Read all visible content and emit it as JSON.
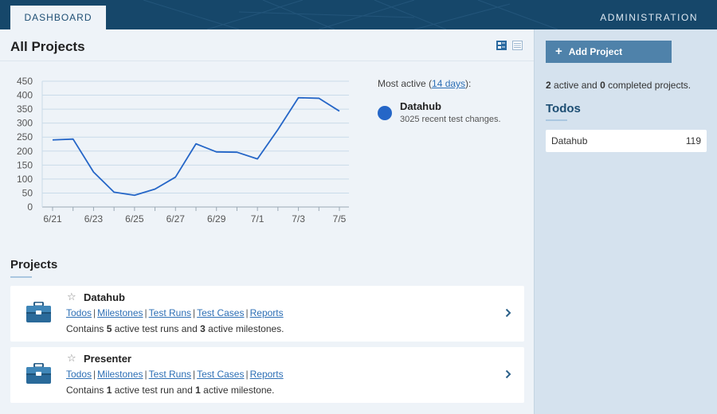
{
  "nav": {
    "dashboard": "DASHBOARD",
    "administration": "ADMINISTRATION"
  },
  "main": {
    "title": "All Projects"
  },
  "most_active": {
    "prefix": "Most active (",
    "link": "14 days",
    "suffix": "):",
    "project": "Datahub",
    "description": "3025 recent test changes.",
    "color": "#2566c7"
  },
  "chart_data": {
    "type": "line",
    "x": [
      "6/21",
      "6/22",
      "6/23",
      "6/24",
      "6/25",
      "6/26",
      "6/27",
      "6/28",
      "6/29",
      "6/30",
      "7/1",
      "7/2",
      "7/3",
      "7/4",
      "7/5"
    ],
    "x_tick_labels": [
      "6/21",
      "6/23",
      "6/25",
      "6/27",
      "6/29",
      "7/1",
      "7/3",
      "7/5"
    ],
    "series": [
      {
        "name": "Datahub",
        "values": [
          240,
          243,
          125,
          53,
          42,
          64,
          107,
          226,
          197,
          196,
          172,
          277,
          391,
          389,
          343
        ],
        "color": "#2566c7"
      }
    ],
    "ylim": [
      0,
      450
    ],
    "y_ticks": [
      0,
      50,
      100,
      150,
      200,
      250,
      300,
      350,
      400,
      450
    ],
    "grid": true
  },
  "projects_section": {
    "title": "Projects"
  },
  "projects": [
    {
      "name": "Datahub",
      "links": [
        "Todos",
        "Milestones",
        "Test Runs",
        "Test Cases",
        "Reports"
      ],
      "desc_prefix": "Contains ",
      "runs": "5",
      "desc_middle": " active test runs and ",
      "milestones": "3",
      "desc_suffix": " active milestones."
    },
    {
      "name": "Presenter",
      "links": [
        "Todos",
        "Milestones",
        "Test Runs",
        "Test Cases",
        "Reports"
      ],
      "desc_prefix": "Contains ",
      "runs": "1",
      "desc_middle": " active test run and ",
      "milestones": "1",
      "desc_suffix": " active milestone."
    }
  ],
  "sidebar": {
    "add_project": "Add Project",
    "active_count": "2",
    "active_text": " active and ",
    "completed_count": "0",
    "completed_text": " completed projects.",
    "todos_title": "Todos",
    "todos": [
      {
        "name": "Datahub",
        "count": "119"
      }
    ]
  },
  "icons": {
    "add": "plus-icon",
    "project": "briefcase-icon",
    "favorite": "star-icon",
    "open": "chevron-right-icon",
    "view_compact": "compact-view-icon",
    "view_list": "list-view-icon"
  },
  "colors": {
    "nav": "#16476a",
    "accent": "#4f82aa",
    "link": "#2d6fb5"
  }
}
